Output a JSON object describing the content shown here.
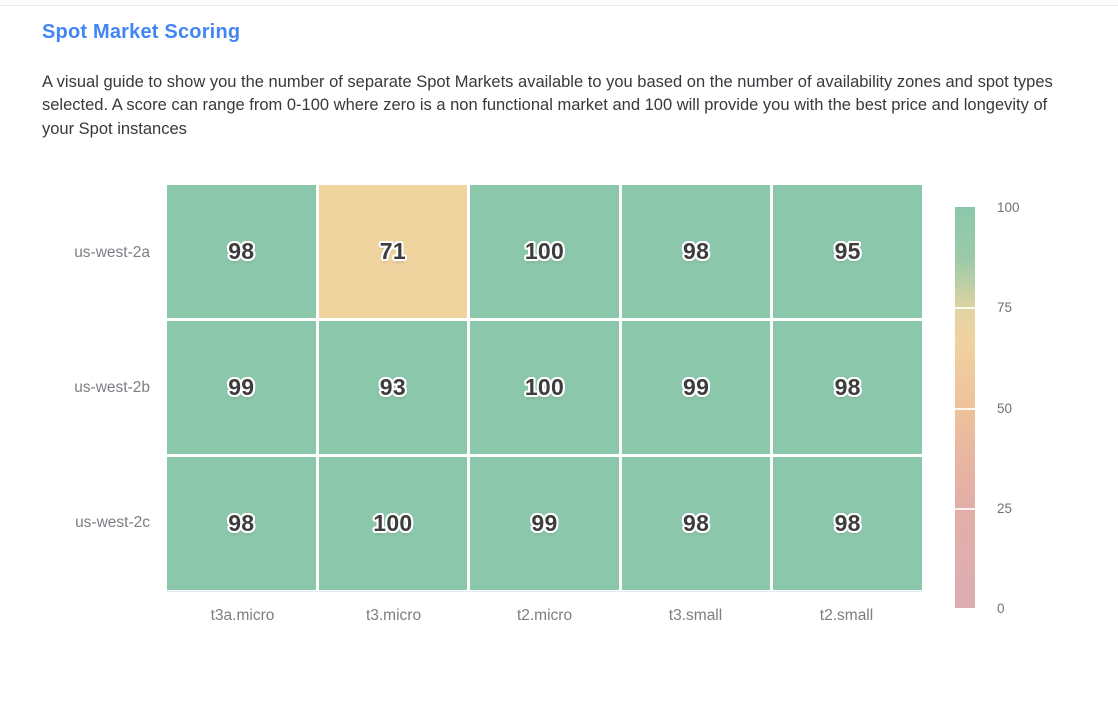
{
  "page": {
    "title": "Spot Market Scoring",
    "description": "A visual guide to show you the number of separate Spot Markets available to you based on the number of availability zones and spot types selected. A score can range from 0-100 where zero is a non functional market and 100 will provide you with the best price and longevity of your Spot instances"
  },
  "colors": {
    "title_blue": "#4285f4",
    "cell_green": "#8bc8ab",
    "cell_tan": "#f0d4a0",
    "value_text": "#3d3d3d",
    "axis_label_gray": "#7b7e83",
    "colorbar_label_gray": "#6e7277"
  },
  "chart_data": {
    "type": "heatmap",
    "title": "Spot Market Scoring",
    "x_categories": [
      "t3a.micro",
      "t3.micro",
      "t2.micro",
      "t3.small",
      "t2.small"
    ],
    "y_categories": [
      "us-west-2a",
      "us-west-2b",
      "us-west-2c"
    ],
    "rows": [
      {
        "label": "us-west-2a",
        "values": [
          98,
          71,
          100,
          98,
          95
        ],
        "colors": [
          "#8bc8ab",
          "#f0d4a0",
          "#8bc8ab",
          "#8bc8ab",
          "#8bc8ab"
        ]
      },
      {
        "label": "us-west-2b",
        "values": [
          99,
          93,
          100,
          99,
          98
        ],
        "colors": [
          "#8bc8ab",
          "#8bc8ab",
          "#8bc8ab",
          "#8bc8ab",
          "#8bc8ab"
        ]
      },
      {
        "label": "us-west-2c",
        "values": [
          98,
          100,
          99,
          98,
          98
        ],
        "colors": [
          "#8bc8ab",
          "#8bc8ab",
          "#8bc8ab",
          "#8bc8ab",
          "#8bc8ab"
        ]
      }
    ],
    "value_range": [
      0,
      100
    ],
    "colorbar": {
      "position": "right",
      "ticks": [
        "100",
        "75",
        "50",
        "25",
        "0"
      ],
      "gradient_top_to_bottom": [
        "#8bc8ab",
        "#c6d0a4",
        "#f0d2a0",
        "#eec29b",
        "#e2aea7",
        "#ddadb2"
      ]
    }
  }
}
